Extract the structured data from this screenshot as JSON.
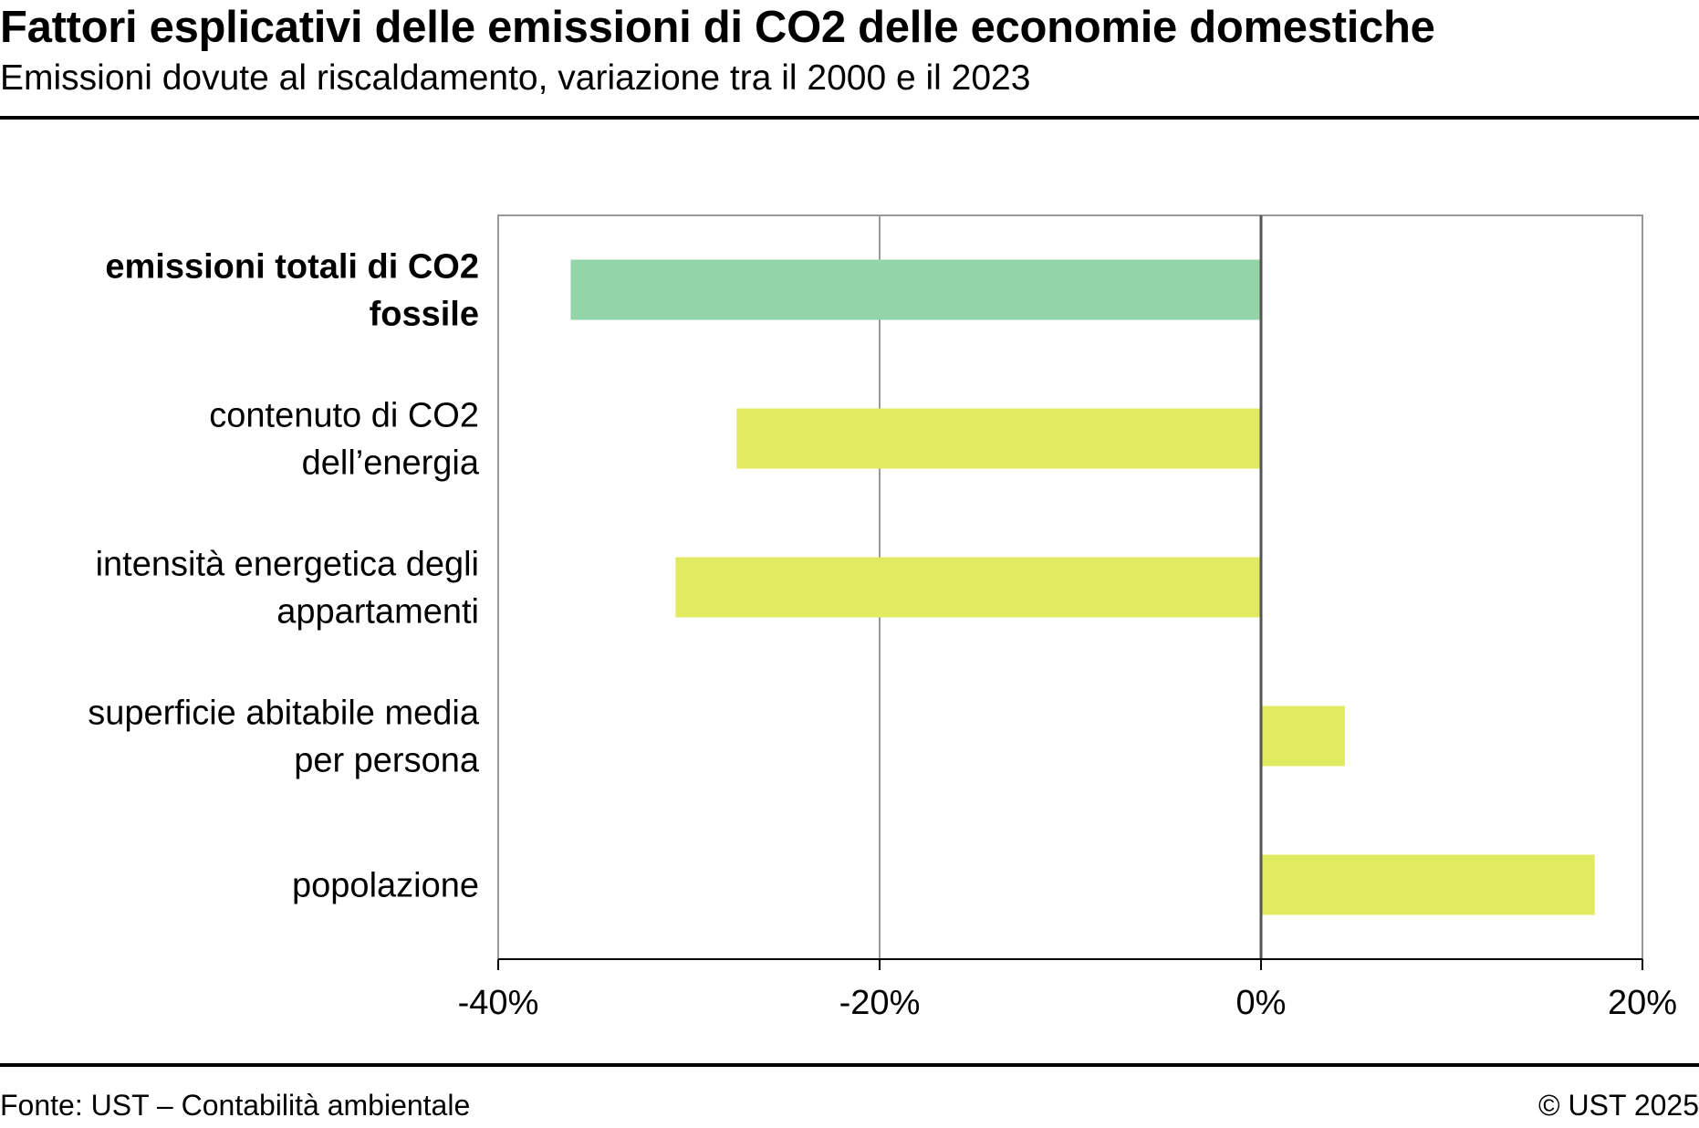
{
  "header": {
    "title": "Fattori esplicativi delle emissioni di CO2 delle economie domestiche",
    "subtitle": "Emissioni dovute al riscaldamento, variazione tra il 2000 e il 2023"
  },
  "footer": {
    "source": "Fonte: UST – Contabilità ambientale",
    "copyright": "© UST 2025"
  },
  "chart_data": {
    "type": "bar",
    "orientation": "horizontal",
    "title": "Fattori esplicativi delle emissioni di CO2 delle economie domestiche",
    "subtitle": "Emissioni dovute al riscaldamento, variazione tra il 2000 e il 2023",
    "categories": [
      {
        "lines": [
          "emissioni totali di CO2",
          "fossile"
        ],
        "bold": true
      },
      {
        "lines": [
          "contenuto di CO2",
          "dell’energia"
        ],
        "bold": false
      },
      {
        "lines": [
          "intensità energetica degli",
          "appartamenti"
        ],
        "bold": false
      },
      {
        "lines": [
          "superficie abitabile media",
          "per persona"
        ],
        "bold": false
      },
      {
        "lines": [
          "popolazione"
        ],
        "bold": false
      }
    ],
    "values": [
      -36.2,
      -27.5,
      -30.7,
      4.4,
      17.5
    ],
    "bar_colors": [
      "#93d4a8",
      "#e0eb62",
      "#e0eb62",
      "#e0eb62",
      "#e0eb62"
    ],
    "xlim": [
      -40,
      20
    ],
    "x_ticks": [
      -40,
      -20,
      0,
      20
    ],
    "x_tick_labels": [
      "-40%",
      "-20%",
      "0%",
      "20%"
    ],
    "unit": "%",
    "grid": true,
    "colors": {
      "total": "#93d4a8",
      "factor": "#e0eb62",
      "grid": "#999999",
      "zero_line": "#555555",
      "frame": "#999999"
    }
  }
}
